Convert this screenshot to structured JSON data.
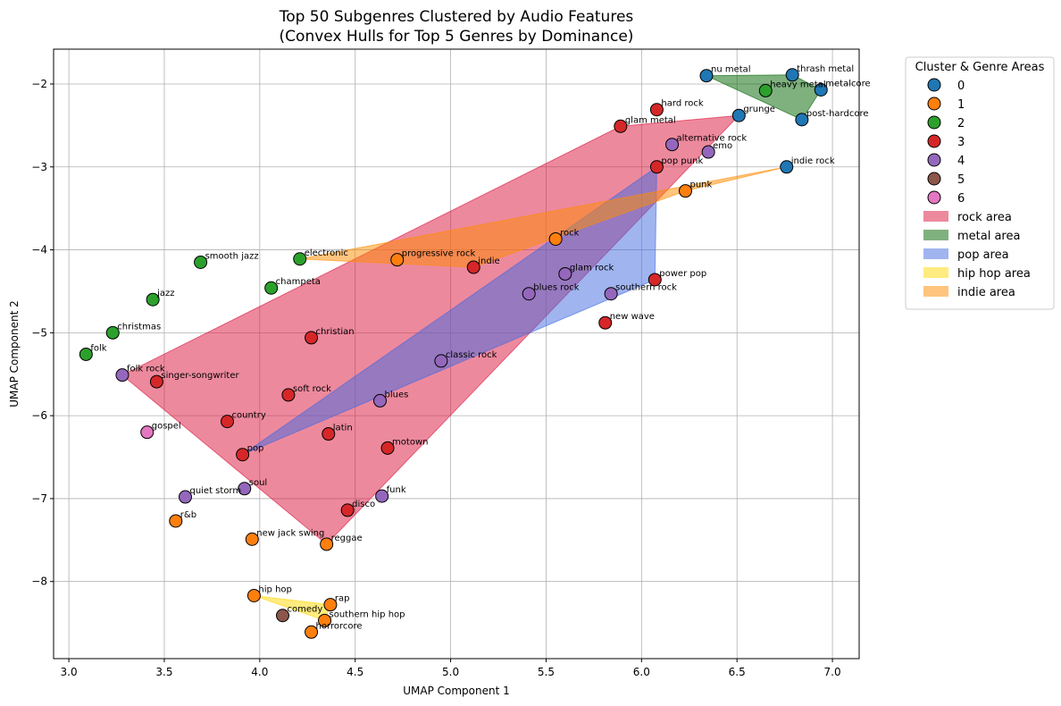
{
  "chart_data": {
    "type": "scatter",
    "title_lines": [
      "Top 50 Subgenres Clustered by Audio Features",
      "(Convex Hulls for Top 5 Genres by Dominance)"
    ],
    "xlabel": "UMAP Component 1",
    "ylabel": "UMAP Component 2",
    "xlim": [
      2.92,
      7.14
    ],
    "ylim": [
      -8.93,
      -1.58
    ],
    "xticks": [
      3.0,
      3.5,
      4.0,
      4.5,
      5.0,
      5.5,
      6.0,
      6.5,
      7.0
    ],
    "xtick_labels": [
      "3.0",
      "3.5",
      "4.0",
      "4.5",
      "5.0",
      "5.5",
      "6.0",
      "6.5",
      "7.0"
    ],
    "yticks": [
      -8,
      -7,
      -6,
      -5,
      -4,
      -3,
      -2
    ],
    "ytick_labels": [
      "−8",
      "−7",
      "−6",
      "−5",
      "−4",
      "−3",
      "−2"
    ],
    "grid": true,
    "legend": {
      "title": "Cluster & Genre Areas",
      "placement": "outside-upper-right",
      "clusters": [
        {
          "label": "0",
          "color": "#1f77b4"
        },
        {
          "label": "1",
          "color": "#ff7f0e"
        },
        {
          "label": "2",
          "color": "#2ca02c"
        },
        {
          "label": "3",
          "color": "#d62728"
        },
        {
          "label": "4",
          "color": "#9467bd"
        },
        {
          "label": "5",
          "color": "#8c564b"
        },
        {
          "label": "6",
          "color": "#e377c2"
        }
      ]
    },
    "areas": [
      {
        "name": "rock area",
        "color": "#dc143c",
        "opacity": 0.5,
        "hull": [
          [
            3.28,
            -5.51
          ],
          [
            4.35,
            -7.55
          ],
          [
            6.51,
            -2.38
          ],
          [
            5.89,
            -2.51
          ]
        ]
      },
      {
        "name": "metal area",
        "color": "#006400",
        "opacity": 0.5,
        "hull": [
          [
            6.34,
            -1.9
          ],
          [
            6.79,
            -1.89
          ],
          [
            6.94,
            -2.07
          ],
          [
            6.84,
            -2.43
          ]
        ]
      },
      {
        "name": "pop area",
        "color": "#4169e1",
        "opacity": 0.5,
        "hull": [
          [
            3.91,
            -6.47
          ],
          [
            6.07,
            -4.36
          ],
          [
            6.08,
            -3.0
          ]
        ]
      },
      {
        "name": "hip hop area",
        "color": "#ffd700",
        "opacity": 0.5,
        "hull": [
          [
            3.97,
            -8.17
          ],
          [
            4.37,
            -8.28
          ],
          [
            4.34,
            -8.47
          ]
        ]
      },
      {
        "name": "indie area",
        "color": "#ff8c00",
        "opacity": 0.5,
        "hull": [
          [
            4.21,
            -4.11
          ],
          [
            6.76,
            -3.0
          ],
          [
            6.23,
            -3.29
          ],
          [
            5.12,
            -4.21
          ]
        ]
      }
    ],
    "points": [
      {
        "label": "nu metal",
        "x": 6.34,
        "y": -1.9,
        "cluster": 0
      },
      {
        "label": "thrash metal",
        "x": 6.79,
        "y": -1.89,
        "cluster": 0
      },
      {
        "label": "metalcore",
        "x": 6.94,
        "y": -2.07,
        "cluster": 0
      },
      {
        "label": "heavy metal",
        "x": 6.65,
        "y": -2.08,
        "cluster": 2
      },
      {
        "label": "grunge",
        "x": 6.51,
        "y": -2.38,
        "cluster": 0
      },
      {
        "label": "post-hardcore",
        "x": 6.84,
        "y": -2.43,
        "cluster": 0
      },
      {
        "label": "hard rock",
        "x": 6.08,
        "y": -2.31,
        "cluster": 3
      },
      {
        "label": "glam metal",
        "x": 5.89,
        "y": -2.51,
        "cluster": 3
      },
      {
        "label": "alternative rock",
        "x": 6.16,
        "y": -2.73,
        "cluster": 4
      },
      {
        "label": "emo",
        "x": 6.35,
        "y": -2.82,
        "cluster": 4
      },
      {
        "label": "pop punk",
        "x": 6.08,
        "y": -3.0,
        "cluster": 3
      },
      {
        "label": "indie rock",
        "x": 6.76,
        "y": -3.0,
        "cluster": 0
      },
      {
        "label": "punk",
        "x": 6.23,
        "y": -3.29,
        "cluster": 1
      },
      {
        "label": "rock",
        "x": 5.55,
        "y": -3.87,
        "cluster": 1
      },
      {
        "label": "electronic",
        "x": 4.21,
        "y": -4.11,
        "cluster": 2
      },
      {
        "label": "progressive rock",
        "x": 4.72,
        "y": -4.12,
        "cluster": 1
      },
      {
        "label": "indie",
        "x": 5.12,
        "y": -4.21,
        "cluster": 3
      },
      {
        "label": "glam rock",
        "x": 5.6,
        "y": -4.29,
        "cluster": 4
      },
      {
        "label": "power pop",
        "x": 6.07,
        "y": -4.36,
        "cluster": 3
      },
      {
        "label": "blues rock",
        "x": 5.41,
        "y": -4.53,
        "cluster": 4
      },
      {
        "label": "southern rock",
        "x": 5.84,
        "y": -4.53,
        "cluster": 4
      },
      {
        "label": "new wave",
        "x": 5.81,
        "y": -4.88,
        "cluster": 3
      },
      {
        "label": "smooth jazz",
        "x": 3.69,
        "y": -4.15,
        "cluster": 2
      },
      {
        "label": "champeta",
        "x": 4.06,
        "y": -4.46,
        "cluster": 2
      },
      {
        "label": "jazz",
        "x": 3.44,
        "y": -4.6,
        "cluster": 2
      },
      {
        "label": "christmas",
        "x": 3.23,
        "y": -5.0,
        "cluster": 2
      },
      {
        "label": "christian",
        "x": 4.27,
        "y": -5.06,
        "cluster": 3
      },
      {
        "label": "folk",
        "x": 3.09,
        "y": -5.26,
        "cluster": 2
      },
      {
        "label": "classic rock",
        "x": 4.95,
        "y": -5.34,
        "cluster": 4
      },
      {
        "label": "folk rock",
        "x": 3.28,
        "y": -5.51,
        "cluster": 4
      },
      {
        "label": "singer-songwriter",
        "x": 3.46,
        "y": -5.59,
        "cluster": 3
      },
      {
        "label": "soft rock",
        "x": 4.15,
        "y": -5.75,
        "cluster": 3
      },
      {
        "label": "blues",
        "x": 4.63,
        "y": -5.82,
        "cluster": 4
      },
      {
        "label": "country",
        "x": 3.83,
        "y": -6.07,
        "cluster": 3
      },
      {
        "label": "gospel",
        "x": 3.41,
        "y": -6.2,
        "cluster": 6
      },
      {
        "label": "latin",
        "x": 4.36,
        "y": -6.22,
        "cluster": 3
      },
      {
        "label": "motown",
        "x": 4.67,
        "y": -6.39,
        "cluster": 3
      },
      {
        "label": "pop",
        "x": 3.91,
        "y": -6.47,
        "cluster": 3
      },
      {
        "label": "soul",
        "x": 3.92,
        "y": -6.88,
        "cluster": 4
      },
      {
        "label": "funk",
        "x": 4.64,
        "y": -6.97,
        "cluster": 4
      },
      {
        "label": "quiet storm",
        "x": 3.61,
        "y": -6.98,
        "cluster": 4
      },
      {
        "label": "disco",
        "x": 4.46,
        "y": -7.14,
        "cluster": 3
      },
      {
        "label": "r&b",
        "x": 3.56,
        "y": -7.27,
        "cluster": 1
      },
      {
        "label": "new jack swing",
        "x": 3.96,
        "y": -7.49,
        "cluster": 1
      },
      {
        "label": "reggae",
        "x": 4.35,
        "y": -7.55,
        "cluster": 1
      },
      {
        "label": "hip hop",
        "x": 3.97,
        "y": -8.17,
        "cluster": 1
      },
      {
        "label": "rap",
        "x": 4.37,
        "y": -8.28,
        "cluster": 1
      },
      {
        "label": "comedy",
        "x": 4.12,
        "y": -8.41,
        "cluster": 5
      },
      {
        "label": "southern hip hop",
        "x": 4.34,
        "y": -8.47,
        "cluster": 1
      },
      {
        "label": "horrorcore",
        "x": 4.27,
        "y": -8.61,
        "cluster": 1
      }
    ]
  }
}
